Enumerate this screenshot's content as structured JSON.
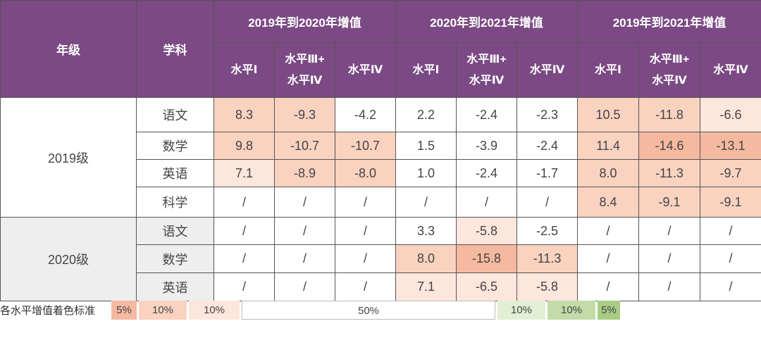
{
  "header": {
    "grade": "年级",
    "subject": "学科",
    "groups": [
      "2019年到2020年增值",
      "2020年到2021年增值",
      "2019年到2021年增值"
    ],
    "levels": [
      {
        "l1": "水平Ⅰ",
        "l2": ""
      },
      {
        "l1": "水平Ⅲ+",
        "l2": "水平Ⅳ"
      },
      {
        "l1": "水平Ⅳ",
        "l2": ""
      }
    ]
  },
  "rows": [
    {
      "grade": "2019级",
      "subject": "语文",
      "values": [
        "8.3",
        "-9.3",
        "-4.2",
        "2.2",
        "-2.4",
        "-2.3",
        "10.5",
        "-11.8",
        "-6.6"
      ]
    },
    {
      "grade": "2019级",
      "subject": "数学",
      "values": [
        "9.8",
        "-10.7",
        "-10.7",
        "1.5",
        "-3.9",
        "-2.4",
        "11.4",
        "-14.6",
        "-13.1"
      ]
    },
    {
      "grade": "2019级",
      "subject": "英语",
      "values": [
        "7.1",
        "-8.9",
        "-8.0",
        "1.0",
        "-2.4",
        "-1.7",
        "8.0",
        "-11.3",
        "-9.7"
      ]
    },
    {
      "grade": "2019级",
      "subject": "科学",
      "values": [
        "/",
        "/",
        "/",
        "/",
        "/",
        "/",
        "8.4",
        "-9.1",
        "-9.1"
      ]
    },
    {
      "grade": "2020级",
      "subject": "语文",
      "values": [
        "/",
        "/",
        "/",
        "3.3",
        "-5.8",
        "-2.5",
        "/",
        "/",
        "/"
      ]
    },
    {
      "grade": "2020级",
      "subject": "数学",
      "values": [
        "/",
        "/",
        "/",
        "8.0",
        "-15.8",
        "-11.3",
        "/",
        "/",
        "/"
      ]
    },
    {
      "grade": "2020级",
      "subject": "英语",
      "values": [
        "/",
        "/",
        "/",
        "7.1",
        "-6.5",
        "-5.8",
        "/",
        "/",
        "/"
      ]
    }
  ],
  "grades": [
    "2019级",
    "2020级"
  ],
  "cell_shading": [
    [
      "c-10",
      "c-10",
      "c-0",
      "c-0",
      "c-0",
      "c-0",
      "c-10",
      "c-10",
      "c-15"
    ],
    [
      "c-10",
      "c-10",
      "c-10",
      "c-0",
      "c-0",
      "c-0",
      "c-10",
      "c-5",
      "c-5"
    ],
    [
      "c-15",
      "c-10",
      "c-10",
      "c-0",
      "c-0",
      "c-0",
      "c-10",
      "c-10",
      "c-10"
    ],
    [
      "c-0",
      "c-0",
      "c-0",
      "c-0",
      "c-0",
      "c-0",
      "c-10",
      "c-10",
      "c-10"
    ],
    [
      "c-0",
      "c-0",
      "c-0",
      "c-0",
      "c-15",
      "c-0",
      "c-0",
      "c-0",
      "c-0"
    ],
    [
      "c-0",
      "c-0",
      "c-0",
      "c-10",
      "c-5",
      "c-10",
      "c-0",
      "c-0",
      "c-0"
    ],
    [
      "c-0",
      "c-0",
      "c-0",
      "c-15",
      "c-15",
      "c-15",
      "c-0",
      "c-0",
      "c-0"
    ]
  ],
  "legend": {
    "title": "各水平增值着色标准",
    "items": [
      {
        "label": "5%",
        "color": "#f5b9a0",
        "border": "none"
      },
      {
        "label": "10%",
        "color": "#fad2c0",
        "border": "none"
      },
      {
        "label": "10%",
        "color": "#fde6dc",
        "border": "none"
      },
      {
        "label": "50%",
        "color": "#ffffff",
        "border": "1px solid #bbb"
      },
      {
        "label": "10%",
        "color": "#e3efd5",
        "border": "none"
      },
      {
        "label": "10%",
        "color": "#c3dba8",
        "border": "none"
      },
      {
        "label": "5%",
        "color": "#a9cc84",
        "border": "none"
      }
    ]
  }
}
